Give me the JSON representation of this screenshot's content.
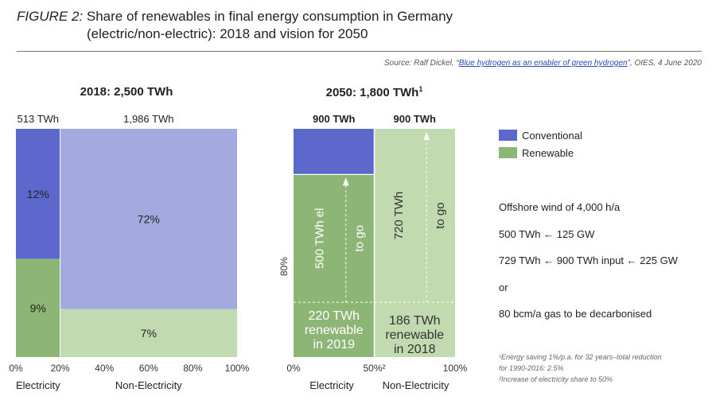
{
  "header": {
    "figure_label": "FIGURE 2:",
    "title_line1": "Share of renewables in final energy consumption in Germany",
    "title_line2": "(electric/non-electric): 2018 and vision for 2050",
    "source_prefix": "Source: Ralf Dickel, “",
    "source_link": "Blue hydrogen as an enabler of green hydrogen",
    "source_suffix": "”, OIES, 4 June 2020"
  },
  "colors": {
    "conventional": "#5d68cc",
    "conventional_light": "#a2aadf",
    "renewable": "#8db676",
    "renewable_light": "#c2dab0"
  },
  "chart_data": [
    {
      "type": "mekko",
      "title": "2018: 2,500 TWh",
      "columns": [
        {
          "name": "Electricity",
          "total_label": "513 TWh",
          "width_pct": 20,
          "segments": [
            {
              "series": "Conventional",
              "label": "12%"
            },
            {
              "series": "Renewable",
              "label": "9%"
            }
          ]
        },
        {
          "name": "Non-Electricity",
          "total_label": "1,986 TWh",
          "width_pct": 80,
          "segments": [
            {
              "series": "Conventional",
              "label": "72%"
            },
            {
              "series": "Renewable",
              "label": "7%"
            }
          ]
        }
      ],
      "x_ticks": [
        "0%",
        "20%",
        "40%",
        "60%",
        "80%",
        "100%"
      ],
      "x_tick_values": [
        0,
        20,
        40,
        60,
        80,
        100
      ],
      "xlim": [
        0,
        100
      ],
      "renewable_share_of_column": [
        0.43,
        0.21
      ]
    },
    {
      "type": "mekko",
      "title": "2050: 1,800 TWh",
      "title_sup": "1",
      "columns": [
        {
          "name": "Electricity",
          "total_label": "900 TWh",
          "width_pct": 50,
          "conventional_share": 0.2,
          "to_go_label_a": "500 TWh el",
          "to_go_label_b": "to go",
          "base_label": [
            "220 TWh",
            "renewable",
            "in 2019"
          ],
          "base_share": 0.24
        },
        {
          "name": "Non-Electricity",
          "total_label": "900 TWh",
          "width_pct": 50,
          "conventional_share": 0,
          "to_go_label_a": "720 TWh",
          "to_go_label_b": "to go",
          "base_label": [
            "186 TWh",
            "renewable",
            "in 2018"
          ]
        }
      ],
      "side_label": "80%",
      "x_ticks": [
        "0%",
        "50%²",
        "100%"
      ],
      "x_tick_values": [
        0,
        50,
        100
      ],
      "xlim": [
        0,
        100
      ]
    }
  ],
  "legend": [
    {
      "label": "Conventional",
      "color": "#5d68cc"
    },
    {
      "label": "Renewable",
      "color": "#8db676"
    }
  ],
  "notes": [
    "Offshore wind of 4,000 h/a",
    "500 TWh ← 125 GW",
    "729 TWh ← 900 TWh input ← 225 GW",
    "or",
    "80 bcm/a gas to be decarbonised"
  ],
  "footnotes": [
    "¹Energy saving 1%/p.a. for 32 years–total reduction",
    "for 1990-2016: 2.5%",
    "²Increase of electricity share to 50%"
  ]
}
